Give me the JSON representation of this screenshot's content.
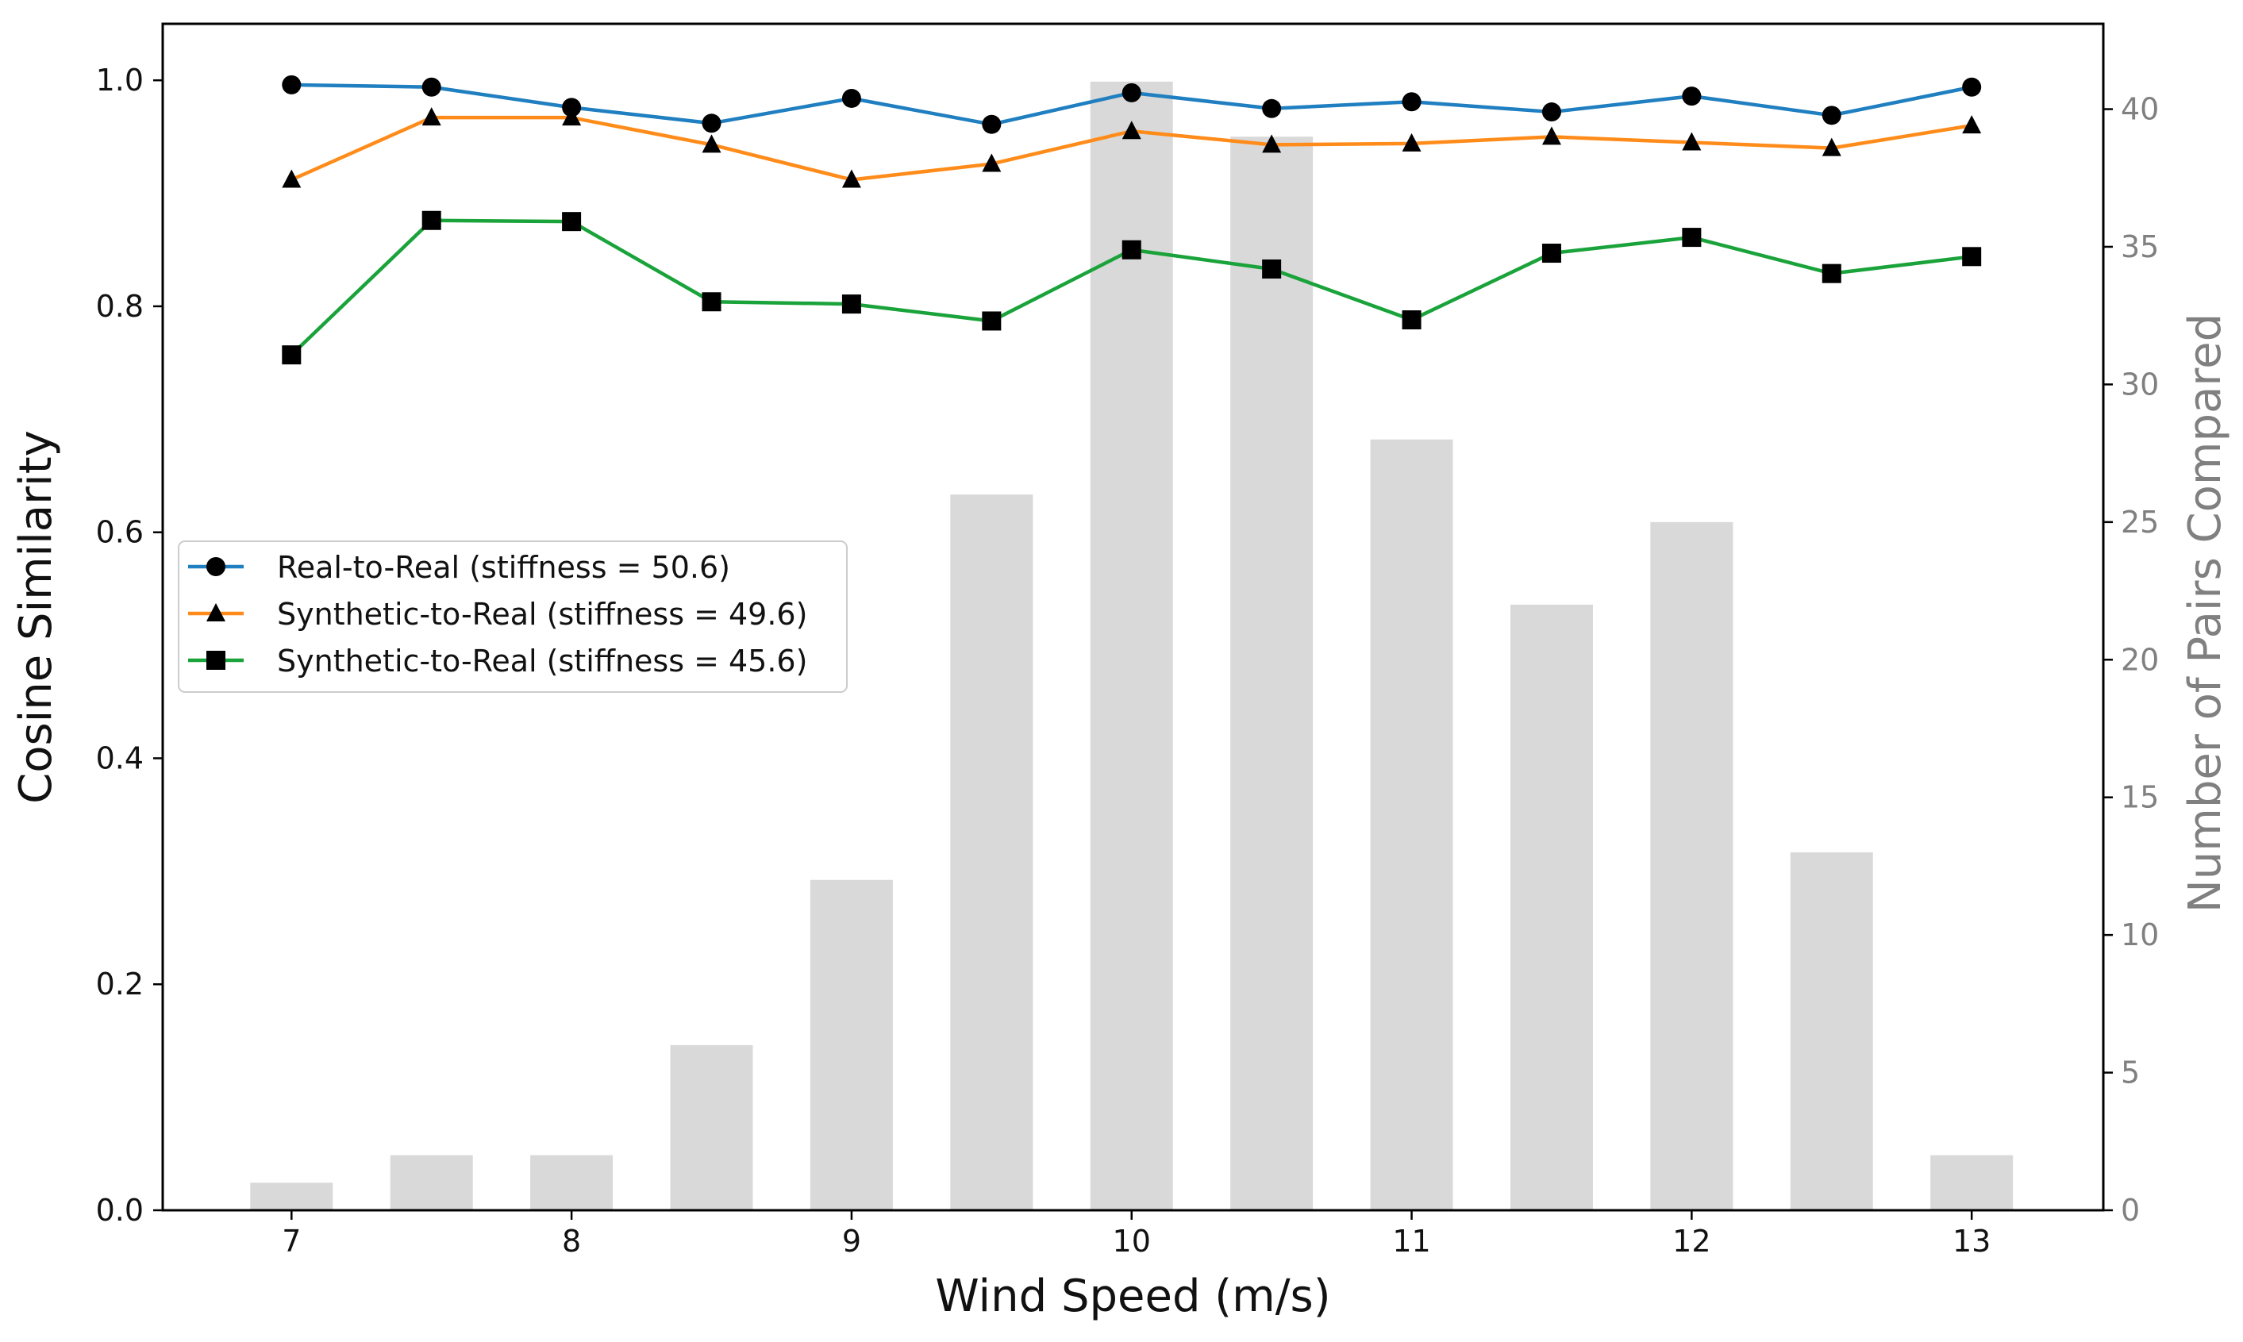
{
  "chart_data": {
    "type": "line",
    "title": "",
    "xlabel": "Wind Speed (m/s)",
    "ylabel": "Cosine Similarity",
    "ylabel_right": "Number of Pairs Compared",
    "x": [
      7,
      7.5,
      8,
      8.5,
      9,
      9.5,
      10,
      10.5,
      11,
      11.5,
      12,
      12.5,
      13
    ],
    "xticks": [
      "7",
      "8",
      "9",
      "10",
      "11",
      "12",
      "13"
    ],
    "xtick_values": [
      7,
      8,
      9,
      10,
      11,
      12,
      13
    ],
    "xlim": [
      6.54,
      13.47
    ],
    "ylim": [
      0,
      1.05
    ],
    "yticks": [
      "0.0",
      "0.2",
      "0.4",
      "0.6",
      "0.8",
      "1.0"
    ],
    "ytick_values": [
      0,
      0.2,
      0.4,
      0.6,
      0.8,
      1.0
    ],
    "ylim_right": [
      0,
      43.1
    ],
    "yticks_right": [
      "0",
      "5",
      "10",
      "15",
      "20",
      "25",
      "30",
      "35",
      "40"
    ],
    "ytick_values_right": [
      0,
      5,
      10,
      15,
      20,
      25,
      30,
      35,
      40
    ],
    "bars": {
      "name": "Number of Pairs Compared",
      "axis": "right",
      "color": "#d9d9d9",
      "values": [
        1,
        2,
        2,
        6,
        12,
        26,
        41,
        39,
        28,
        22,
        25,
        13,
        2
      ]
    },
    "series": [
      {
        "name": "Real-to-Real (stiffness = 50.6)",
        "color": "#1f7fc0",
        "marker": "circle",
        "values": [
          0.996,
          0.994,
          0.976,
          0.962,
          0.984,
          0.961,
          0.989,
          0.975,
          0.981,
          0.972,
          0.986,
          0.969,
          0.994
        ]
      },
      {
        "name": "Synthetic-to-Real (stiffness = 49.6)",
        "color": "#ff8c1a",
        "marker": "triangle",
        "values": [
          0.912,
          0.967,
          0.967,
          0.943,
          0.912,
          0.926,
          0.955,
          0.943,
          0.944,
          0.95,
          0.945,
          0.94,
          0.96
        ]
      },
      {
        "name": "Synthetic-to-Real (stiffness = 45.6)",
        "color": "#1aa33a",
        "marker": "square",
        "values": [
          0.757,
          0.876,
          0.875,
          0.804,
          0.802,
          0.787,
          0.85,
          0.833,
          0.788,
          0.847,
          0.861,
          0.829,
          0.844
        ]
      }
    ],
    "legend_position": "center-left",
    "grid": false
  }
}
